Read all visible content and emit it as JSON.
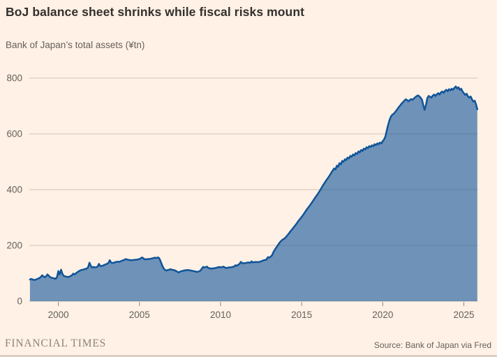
{
  "header": {
    "title": "BoJ balance sheet shrinks while fiscal risks mount",
    "subtitle": "Bank of Japan’s total assets (¥tn)"
  },
  "footer": {
    "brand": "FINANCIAL TIMES",
    "source": "Source: Bank of Japan via Fred"
  },
  "colors": {
    "background": "#FFF1E5",
    "line": "#0F5499",
    "fill": "rgba(15,84,153,0.6)",
    "gridline": "#D0C5B8",
    "axis_text": "#66605B",
    "tick": "#8F8779",
    "title_text": "#33302E"
  },
  "chart_data": {
    "type": "area",
    "title": "BoJ balance sheet shrinks while fiscal risks mount",
    "subtitle": "Bank of Japan’s total assets (¥tn)",
    "xlabel": "",
    "ylabel": "¥tn",
    "x_ticks": [
      2000,
      2005,
      2010,
      2015,
      2020,
      2025
    ],
    "y_ticks": [
      0,
      200,
      400,
      600,
      800
    ],
    "xlim": [
      1998.21,
      2025.86
    ],
    "ylim": [
      0,
      800
    ],
    "grid": "horizontal",
    "legend": "none",
    "series": [
      {
        "name": "BoJ total assets (¥tn)",
        "points": [
          [
            1998.25,
            78
          ],
          [
            1998.33,
            80
          ],
          [
            1998.42,
            78
          ],
          [
            1998.5,
            76
          ],
          [
            1998.58,
            77
          ],
          [
            1998.67,
            79
          ],
          [
            1998.75,
            81
          ],
          [
            1998.83,
            83
          ],
          [
            1998.92,
            87
          ],
          [
            1999,
            93
          ],
          [
            1999.08,
            89
          ],
          [
            1999.17,
            86
          ],
          [
            1999.25,
            90
          ],
          [
            1999.33,
            96
          ],
          [
            1999.42,
            91
          ],
          [
            1999.5,
            86
          ],
          [
            1999.58,
            84
          ],
          [
            1999.67,
            83
          ],
          [
            1999.75,
            82
          ],
          [
            1999.83,
            80
          ],
          [
            1999.92,
            87
          ],
          [
            2000,
            108
          ],
          [
            2000.08,
            96
          ],
          [
            2000.17,
            113
          ],
          [
            2000.25,
            98
          ],
          [
            2000.33,
            91
          ],
          [
            2000.42,
            89
          ],
          [
            2000.5,
            88
          ],
          [
            2000.58,
            87
          ],
          [
            2000.67,
            88
          ],
          [
            2000.75,
            90
          ],
          [
            2000.83,
            93
          ],
          [
            2000.92,
            99
          ],
          [
            2001,
            96
          ],
          [
            2001.08,
            100
          ],
          [
            2001.17,
            104
          ],
          [
            2001.25,
            107
          ],
          [
            2001.33,
            110
          ],
          [
            2001.42,
            112
          ],
          [
            2001.5,
            113
          ],
          [
            2001.58,
            114
          ],
          [
            2001.67,
            116
          ],
          [
            2001.75,
            117
          ],
          [
            2001.83,
            121
          ],
          [
            2001.92,
            138
          ],
          [
            2002,
            127
          ],
          [
            2002.08,
            121
          ],
          [
            2002.17,
            123
          ],
          [
            2002.25,
            121
          ],
          [
            2002.33,
            122
          ],
          [
            2002.42,
            124
          ],
          [
            2002.5,
            134
          ],
          [
            2002.58,
            127
          ],
          [
            2002.67,
            126
          ],
          [
            2002.75,
            128
          ],
          [
            2002.83,
            130
          ],
          [
            2002.92,
            132
          ],
          [
            2003,
            134
          ],
          [
            2003.08,
            137
          ],
          [
            2003.17,
            147
          ],
          [
            2003.25,
            139
          ],
          [
            2003.33,
            137
          ],
          [
            2003.42,
            138
          ],
          [
            2003.5,
            140
          ],
          [
            2003.58,
            141
          ],
          [
            2003.67,
            142
          ],
          [
            2003.75,
            141
          ],
          [
            2003.83,
            143
          ],
          [
            2003.92,
            145
          ],
          [
            2004,
            147
          ],
          [
            2004.17,
            151
          ],
          [
            2004.33,
            148
          ],
          [
            2004.5,
            147
          ],
          [
            2004.67,
            148
          ],
          [
            2004.83,
            149
          ],
          [
            2005,
            151
          ],
          [
            2005.17,
            157
          ],
          [
            2005.33,
            150
          ],
          [
            2005.5,
            151
          ],
          [
            2005.67,
            152
          ],
          [
            2005.83,
            154
          ],
          [
            2005.92,
            156
          ],
          [
            2006,
            155
          ],
          [
            2006.08,
            156
          ],
          [
            2006.17,
            157
          ],
          [
            2006.25,
            151
          ],
          [
            2006.33,
            139
          ],
          [
            2006.42,
            126
          ],
          [
            2006.5,
            117
          ],
          [
            2006.58,
            112
          ],
          [
            2006.67,
            110
          ],
          [
            2006.75,
            112
          ],
          [
            2006.83,
            113
          ],
          [
            2006.92,
            115
          ],
          [
            2007,
            113
          ],
          [
            2007.17,
            111
          ],
          [
            2007.33,
            106
          ],
          [
            2007.42,
            103
          ],
          [
            2007.5,
            106
          ],
          [
            2007.67,
            109
          ],
          [
            2007.83,
            111
          ],
          [
            2008,
            112
          ],
          [
            2008.17,
            110
          ],
          [
            2008.33,
            108
          ],
          [
            2008.5,
            106
          ],
          [
            2008.58,
            105
          ],
          [
            2008.75,
            109
          ],
          [
            2008.92,
            123
          ],
          [
            2009,
            121
          ],
          [
            2009.17,
            124
          ],
          [
            2009.25,
            119
          ],
          [
            2009.42,
            117
          ],
          [
            2009.58,
            118
          ],
          [
            2009.75,
            120
          ],
          [
            2009.92,
            123
          ],
          [
            2010,
            121
          ],
          [
            2010.17,
            124
          ],
          [
            2010.33,
            119
          ],
          [
            2010.5,
            121
          ],
          [
            2010.67,
            122
          ],
          [
            2010.83,
            124
          ],
          [
            2010.92,
            129
          ],
          [
            2011,
            127
          ],
          [
            2011.17,
            134
          ],
          [
            2011.25,
            141
          ],
          [
            2011.33,
            137
          ],
          [
            2011.5,
            136
          ],
          [
            2011.67,
            139
          ],
          [
            2011.83,
            138
          ],
          [
            2011.92,
            143
          ],
          [
            2012,
            139
          ],
          [
            2012.17,
            141
          ],
          [
            2012.33,
            140
          ],
          [
            2012.5,
            143
          ],
          [
            2012.67,
            147
          ],
          [
            2012.83,
            149
          ],
          [
            2012.92,
            158
          ],
          [
            2013,
            156
          ],
          [
            2013.17,
            164
          ],
          [
            2013.25,
            175
          ],
          [
            2013.33,
            183
          ],
          [
            2013.42,
            191
          ],
          [
            2013.5,
            198
          ],
          [
            2013.58,
            205
          ],
          [
            2013.67,
            212
          ],
          [
            2013.75,
            217
          ],
          [
            2013.83,
            221
          ],
          [
            2013.92,
            224
          ],
          [
            2014,
            228
          ],
          [
            2014.17,
            240
          ],
          [
            2014.33,
            252
          ],
          [
            2014.5,
            264
          ],
          [
            2014.67,
            277
          ],
          [
            2014.83,
            290
          ],
          [
            2015,
            302
          ],
          [
            2015.17,
            316
          ],
          [
            2015.33,
            330
          ],
          [
            2015.5,
            343
          ],
          [
            2015.67,
            357
          ],
          [
            2015.83,
            371
          ],
          [
            2016,
            385
          ],
          [
            2016.17,
            401
          ],
          [
            2016.33,
            417
          ],
          [
            2016.5,
            432
          ],
          [
            2016.67,
            446
          ],
          [
            2016.83,
            461
          ],
          [
            2017,
            476
          ],
          [
            2017.08,
            472
          ],
          [
            2017.17,
            486
          ],
          [
            2017.25,
            482
          ],
          [
            2017.33,
            495
          ],
          [
            2017.42,
            491
          ],
          [
            2017.5,
            503
          ],
          [
            2017.58,
            500
          ],
          [
            2017.67,
            509
          ],
          [
            2017.75,
            506
          ],
          [
            2017.83,
            515
          ],
          [
            2017.92,
            512
          ],
          [
            2018,
            521
          ],
          [
            2018.08,
            518
          ],
          [
            2018.17,
            526
          ],
          [
            2018.25,
            523
          ],
          [
            2018.33,
            531
          ],
          [
            2018.42,
            528
          ],
          [
            2018.5,
            537
          ],
          [
            2018.58,
            534
          ],
          [
            2018.67,
            542
          ],
          [
            2018.75,
            539
          ],
          [
            2018.83,
            547
          ],
          [
            2018.92,
            544
          ],
          [
            2019,
            552
          ],
          [
            2019.08,
            549
          ],
          [
            2019.17,
            556
          ],
          [
            2019.25,
            553
          ],
          [
            2019.33,
            559
          ],
          [
            2019.42,
            556
          ],
          [
            2019.5,
            563
          ],
          [
            2019.58,
            560
          ],
          [
            2019.67,
            566
          ],
          [
            2019.75,
            563
          ],
          [
            2019.83,
            569
          ],
          [
            2019.92,
            566
          ],
          [
            2020,
            574
          ],
          [
            2020.08,
            580
          ],
          [
            2020.17,
            592
          ],
          [
            2020.25,
            612
          ],
          [
            2020.33,
            632
          ],
          [
            2020.42,
            650
          ],
          [
            2020.5,
            662
          ],
          [
            2020.58,
            668
          ],
          [
            2020.67,
            672
          ],
          [
            2020.75,
            677
          ],
          [
            2020.83,
            683
          ],
          [
            2020.92,
            690
          ],
          [
            2021,
            697
          ],
          [
            2021.08,
            702
          ],
          [
            2021.17,
            709
          ],
          [
            2021.25,
            714
          ],
          [
            2021.33,
            719
          ],
          [
            2021.42,
            724
          ],
          [
            2021.5,
            721
          ],
          [
            2021.58,
            717
          ],
          [
            2021.67,
            721
          ],
          [
            2021.75,
            725
          ],
          [
            2021.83,
            722
          ],
          [
            2021.92,
            727
          ],
          [
            2022,
            731
          ],
          [
            2022.08,
            735
          ],
          [
            2022.17,
            738
          ],
          [
            2022.25,
            735
          ],
          [
            2022.33,
            730
          ],
          [
            2022.42,
            722
          ],
          [
            2022.5,
            703
          ],
          [
            2022.58,
            686
          ],
          [
            2022.67,
            705
          ],
          [
            2022.75,
            728
          ],
          [
            2022.83,
            736
          ],
          [
            2022.92,
            733
          ],
          [
            2023,
            730
          ],
          [
            2023.08,
            737
          ],
          [
            2023.17,
            741
          ],
          [
            2023.25,
            736
          ],
          [
            2023.33,
            742
          ],
          [
            2023.42,
            746
          ],
          [
            2023.5,
            741
          ],
          [
            2023.58,
            748
          ],
          [
            2023.67,
            752
          ],
          [
            2023.75,
            747
          ],
          [
            2023.83,
            754
          ],
          [
            2023.92,
            758
          ],
          [
            2024,
            753
          ],
          [
            2024.08,
            760
          ],
          [
            2024.17,
            756
          ],
          [
            2024.25,
            762
          ],
          [
            2024.33,
            758
          ],
          [
            2024.42,
            765
          ],
          [
            2024.5,
            770
          ],
          [
            2024.58,
            763
          ],
          [
            2024.67,
            767
          ],
          [
            2024.75,
            758
          ],
          [
            2024.83,
            762
          ],
          [
            2024.92,
            752
          ],
          [
            2025,
            746
          ],
          [
            2025.08,
            740
          ],
          [
            2025.17,
            744
          ],
          [
            2025.25,
            735
          ],
          [
            2025.33,
            730
          ],
          [
            2025.42,
            734
          ],
          [
            2025.5,
            724
          ],
          [
            2025.58,
            716
          ],
          [
            2025.67,
            719
          ],
          [
            2025.75,
            706
          ],
          [
            2025.83,
            688
          ]
        ]
      }
    ]
  }
}
